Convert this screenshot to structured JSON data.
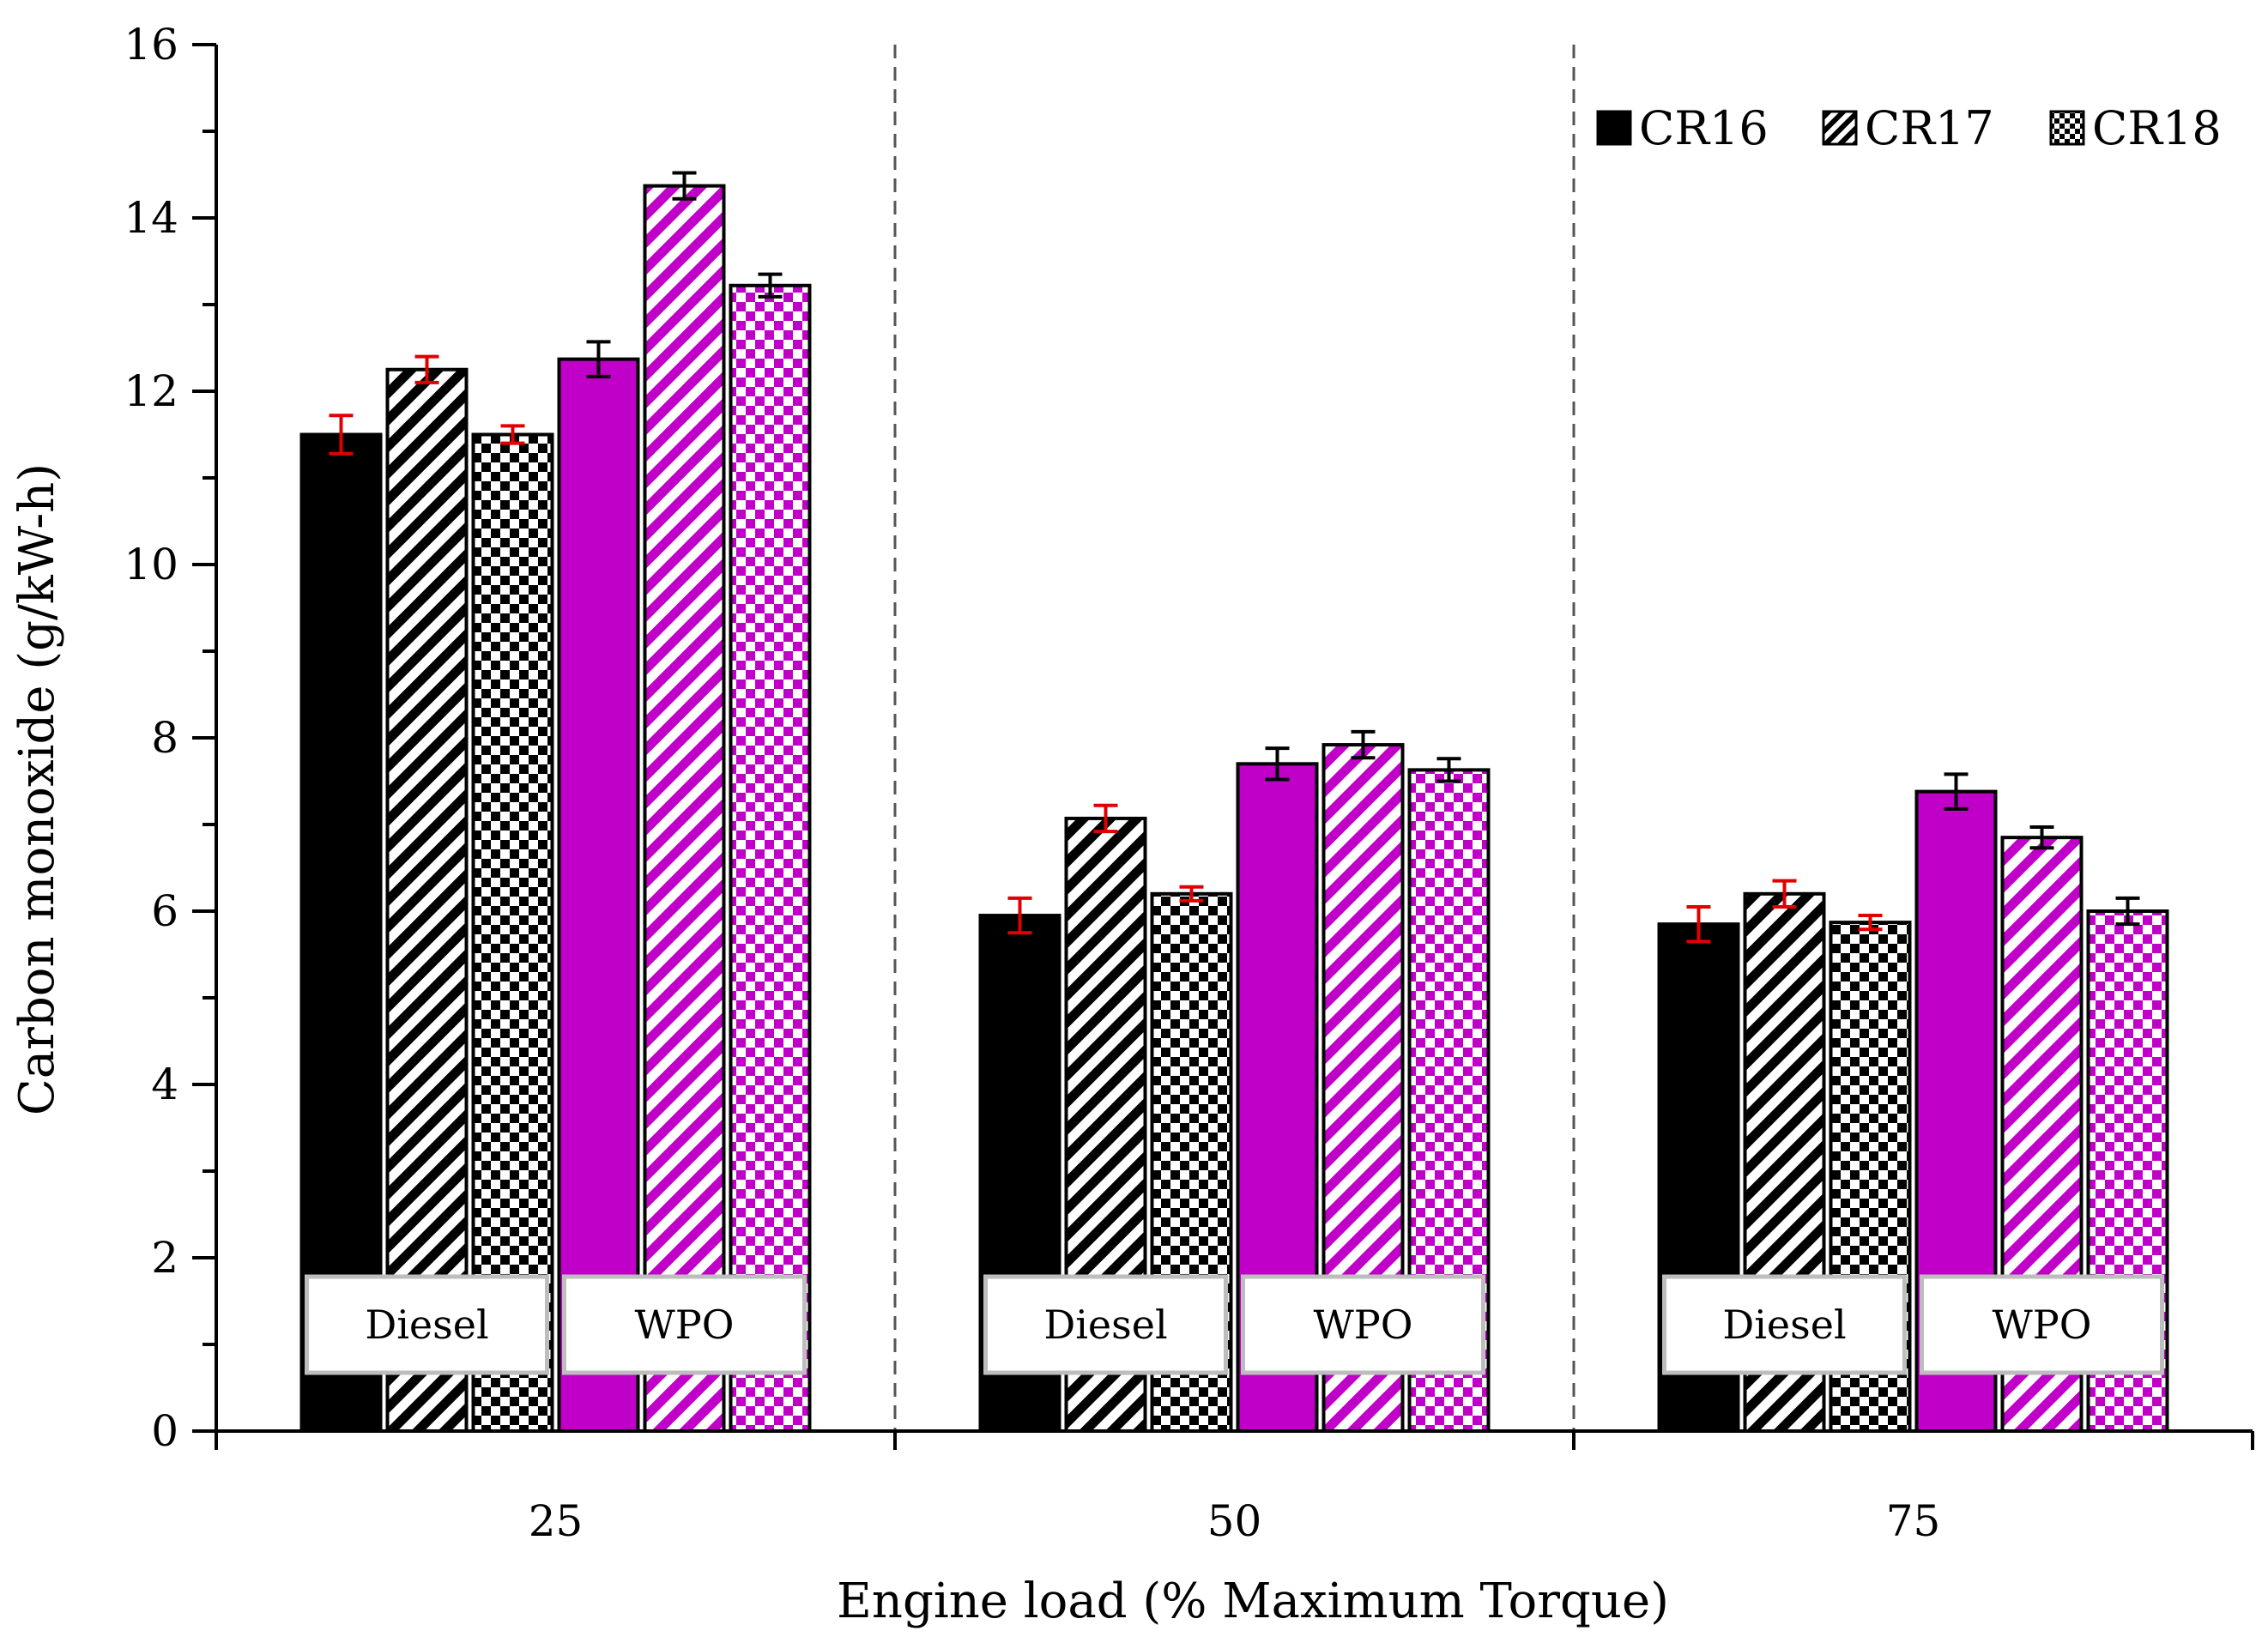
{
  "chart_data": {
    "type": "bar",
    "xlabel": "Engine load (% Maximum Torque)",
    "ylabel": "Carbon monoxide (g/kW-h)",
    "categories": [
      "25",
      "50",
      "75"
    ],
    "ylim": [
      0,
      16
    ],
    "yticks": [
      "0",
      "2",
      "4",
      "6",
      "8",
      "10",
      "12",
      "14",
      "16"
    ],
    "legend": [
      "CR16",
      "CR17",
      "CR18"
    ],
    "legend_position": "top-right",
    "fuel_labels": [
      "Diesel",
      "WPO"
    ],
    "colors": {
      "diesel": "#000000",
      "wpo": "#c000c8",
      "diesel_error": "#e00000",
      "wpo_error": "#000000"
    },
    "series": [
      {
        "name": "CR16",
        "fuel": "Diesel",
        "pattern": "solid",
        "values": [
          11.5,
          5.95,
          5.85
        ],
        "errors": [
          0.22,
          0.2,
          0.2
        ]
      },
      {
        "name": "CR17",
        "fuel": "Diesel",
        "pattern": "diagonal",
        "values": [
          12.25,
          7.07,
          6.2
        ],
        "errors": [
          0.15,
          0.15,
          0.15
        ]
      },
      {
        "name": "CR18",
        "fuel": "Diesel",
        "pattern": "checker",
        "values": [
          11.5,
          6.2,
          5.87
        ],
        "errors": [
          0.1,
          0.08,
          0.08
        ]
      },
      {
        "name": "CR16",
        "fuel": "WPO",
        "pattern": "solid",
        "values": [
          12.37,
          7.7,
          7.38
        ],
        "errors": [
          0.2,
          0.18,
          0.2
        ]
      },
      {
        "name": "CR17",
        "fuel": "WPO",
        "pattern": "diagonal",
        "values": [
          14.37,
          7.92,
          6.85
        ],
        "errors": [
          0.15,
          0.15,
          0.12
        ]
      },
      {
        "name": "CR18",
        "fuel": "WPO",
        "pattern": "checker",
        "values": [
          13.22,
          7.63,
          6.0
        ],
        "errors": [
          0.13,
          0.13,
          0.15
        ]
      }
    ]
  }
}
